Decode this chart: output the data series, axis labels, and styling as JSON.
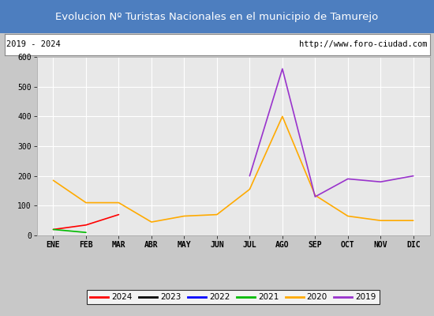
{
  "title": "Evolucion Nº Turistas Nacionales en el municipio de Tamurejo",
  "subtitle_left": "2019 - 2024",
  "subtitle_right": "http://www.foro-ciudad.com",
  "title_bg_color": "#4d7ebf",
  "title_text_color": "#ffffff",
  "subtitle_bg_color": "#ffffff",
  "fig_bg_color": "#c8c8c8",
  "plot_bg_color": "#e8e8e8",
  "months": [
    "ENE",
    "FEB",
    "MAR",
    "ABR",
    "MAY",
    "JUN",
    "JUL",
    "AGO",
    "SEP",
    "OCT",
    "NOV",
    "DIC"
  ],
  "ylim": [
    0,
    600
  ],
  "yticks": [
    0,
    100,
    200,
    300,
    400,
    500,
    600
  ],
  "series": {
    "2024": {
      "color": "#ff0000",
      "values": [
        20,
        35,
        70,
        null,
        null,
        null,
        null,
        null,
        null,
        null,
        null,
        null
      ]
    },
    "2023": {
      "color": "#000000",
      "values": [
        null,
        null,
        null,
        null,
        null,
        null,
        null,
        null,
        null,
        null,
        null,
        null
      ]
    },
    "2022": {
      "color": "#0000ff",
      "values": [
        null,
        null,
        null,
        null,
        null,
        null,
        null,
        null,
        null,
        null,
        null,
        null
      ]
    },
    "2021": {
      "color": "#00bb00",
      "values": [
        20,
        10,
        null,
        null,
        null,
        null,
        null,
        null,
        null,
        null,
        null,
        null
      ]
    },
    "2020": {
      "color": "#ffaa00",
      "values": [
        185,
        110,
        110,
        45,
        65,
        70,
        155,
        400,
        135,
        65,
        50,
        50
      ]
    },
    "2019": {
      "color": "#9933cc",
      "values": [
        null,
        null,
        null,
        null,
        null,
        null,
        200,
        560,
        130,
        190,
        180,
        200
      ]
    }
  },
  "legend_order": [
    "2024",
    "2023",
    "2022",
    "2021",
    "2020",
    "2019"
  ],
  "grid_color": "#ffffff"
}
